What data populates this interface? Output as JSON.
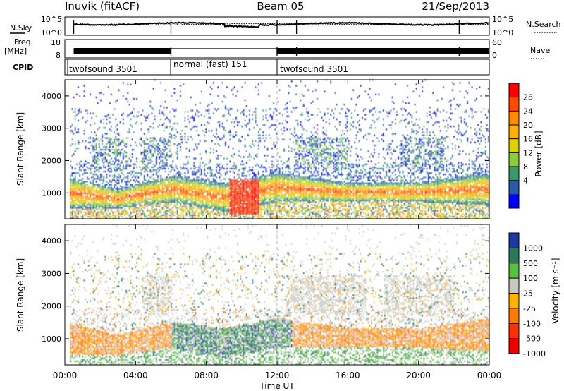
{
  "header": {
    "title": "Inuvik (fitACF)",
    "beam": "Beam 05",
    "date": "21/Sep/2013"
  },
  "panels": {
    "nsky_label": "N.Sky",
    "nsky_ticks": [
      "10^5",
      "10^0"
    ],
    "nsearch_ticks": [
      "10^5",
      "10^0"
    ],
    "nsearch_label": "N.Search",
    "freq_label": "Freq.",
    "freq_unit": "[MHz]",
    "freq_ticks": [
      "18",
      "8"
    ],
    "nave_ticks": [
      "60",
      "0"
    ],
    "nave_label": "Nave",
    "cpid_label": "CPID",
    "cpid_modes": [
      {
        "name": "twofsound 3501",
        "start": 0.5,
        "end": 6.0
      },
      {
        "name": "normal (fast) 151",
        "start": 6.0,
        "end": 12.0
      },
      {
        "name": "twofsound 3501",
        "start": 12.0,
        "end": 24.0
      }
    ]
  },
  "power_colorbar": {
    "label": "Power [dB]",
    "ticks": [
      "28",
      "24",
      "20",
      "16",
      "12",
      "8",
      "4"
    ],
    "colors": [
      "#ff0000",
      "#ff4a00",
      "#ff8a00",
      "#ffb000",
      "#e0d000",
      "#8ccc3c",
      "#3a9a6a",
      "#2a5aa8",
      "#0000ff"
    ]
  },
  "velocity_colorbar": {
    "label": "Velocity [m s⁻¹]",
    "ticks": [
      "1000",
      "500",
      "100",
      "25",
      "-25",
      "-100",
      "-500",
      "-1000"
    ],
    "colors": [
      "#1a3aa0",
      "#2a7a5a",
      "#58c040",
      "#c8c8c0",
      "#ffb000",
      "#ff7a00",
      "#ff3000",
      "#ee0000"
    ]
  },
  "chart_data": [
    {
      "type": "heatmap",
      "quantity": "Power",
      "ylabel": "Slant Range [km]",
      "xlabel": "Time UT",
      "xticks": [
        "00:00",
        "04:00",
        "08:00",
        "12:00",
        "16:00",
        "20:00",
        "00:00"
      ],
      "yticks": [
        "1000",
        "2000",
        "3000",
        "4000"
      ],
      "xlim_hours": [
        0,
        24
      ],
      "ylim_km": [
        200,
        4500
      ],
      "colorbar_range_db": [
        0,
        30
      ],
      "main_echo_band_km": [
        {
          "t": 0,
          "low": 500,
          "high": 1500
        },
        {
          "t": 3,
          "low": 500,
          "high": 1100
        },
        {
          "t": 6,
          "low": 700,
          "high": 1500
        },
        {
          "t": 9,
          "low": 400,
          "high": 1300
        },
        {
          "t": 12,
          "low": 700,
          "high": 1600
        },
        {
          "t": 16,
          "low": 700,
          "high": 1300
        },
        {
          "t": 20,
          "low": 700,
          "high": 1300
        },
        {
          "t": 24,
          "low": 600,
          "high": 1600
        }
      ]
    },
    {
      "type": "heatmap",
      "quantity": "Velocity",
      "ylabel": "Slant Range [km]",
      "xlabel": "Time UT",
      "xticks": [
        "00:00",
        "04:00",
        "08:00",
        "12:00",
        "16:00",
        "20:00",
        "00:00"
      ],
      "yticks": [
        "1000",
        "2000",
        "3000",
        "4000"
      ],
      "xlim_hours": [
        0,
        24
      ],
      "ylim_km": [
        200,
        4500
      ],
      "colorbar_range": [
        -1000,
        1000
      ]
    }
  ]
}
